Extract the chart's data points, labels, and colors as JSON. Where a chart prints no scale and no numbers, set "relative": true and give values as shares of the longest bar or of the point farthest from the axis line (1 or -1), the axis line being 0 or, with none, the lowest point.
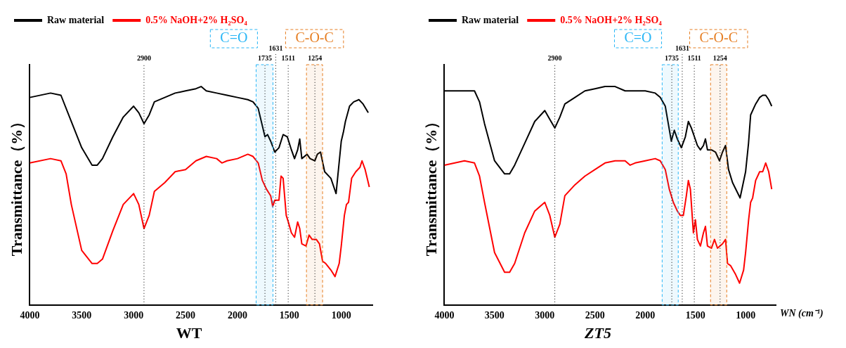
{
  "chart_data": [
    {
      "type": "line",
      "title": "WT",
      "ylabel": "Transmittance（%）",
      "relative": true,
      "legend": "top left",
      "marker": "none",
      "line_style": "solid",
      "xlim": [
        4000,
        700
      ],
      "xticks": [
        4000,
        3500,
        3000,
        2500,
        2000,
        1500,
        1000
      ],
      "ref_lines": [
        {
          "axis": "x",
          "value": 2900,
          "label": "2900",
          "line_style": "dotted"
        },
        {
          "axis": "x",
          "value": 1735,
          "label": "1735",
          "line_style": "dotted"
        },
        {
          "axis": "x",
          "value": 1631,
          "label": "1631",
          "line_style": "dotted"
        },
        {
          "axis": "x",
          "value": 1511,
          "label": "1511",
          "line_style": "dotted"
        },
        {
          "axis": "x",
          "value": 1254,
          "label": "1254",
          "line_style": "dotted"
        }
      ],
      "bands": [
        {
          "axis": "x",
          "from": 1820,
          "to": 1658,
          "label": "C=O",
          "color": "#29b6f6"
        },
        {
          "axis": "x",
          "from": 1335,
          "to": 1180,
          "label": "C-O-C",
          "color": "#e67e22"
        }
      ],
      "series": [
        {
          "name": "Raw material",
          "color": "#000000",
          "x": [
            4000,
            3800,
            3700,
            3600,
            3500,
            3400,
            3350,
            3300,
            3200,
            3100,
            3000,
            2950,
            2900,
            2850,
            2800,
            2700,
            2600,
            2500,
            2400,
            2350,
            2300,
            2200,
            2100,
            2000,
            1900,
            1850,
            1800,
            1760,
            1735,
            1710,
            1680,
            1640,
            1600,
            1560,
            1520,
            1480,
            1450,
            1420,
            1400,
            1380,
            1330,
            1300,
            1254,
            1230,
            1200,
            1160,
            1100,
            1050,
            1000,
            980,
            960,
            920,
            880,
            830,
            790,
            740
          ],
          "values": [
            0.95,
            0.97,
            0.96,
            0.84,
            0.72,
            0.64,
            0.64,
            0.67,
            0.77,
            0.86,
            0.91,
            0.88,
            0.83,
            0.87,
            0.93,
            0.95,
            0.97,
            0.98,
            0.99,
            1.0,
            0.98,
            0.97,
            0.96,
            0.95,
            0.94,
            0.93,
            0.9,
            0.82,
            0.77,
            0.78,
            0.75,
            0.7,
            0.72,
            0.78,
            0.77,
            0.71,
            0.67,
            0.71,
            0.76,
            0.67,
            0.69,
            0.67,
            0.66,
            0.69,
            0.7,
            0.61,
            0.58,
            0.51,
            0.75,
            0.79,
            0.84,
            0.91,
            0.93,
            0.94,
            0.92,
            0.88
          ]
        },
        {
          "name": "0.5% NaOH+2% H₂SO₄",
          "color": "#ff0000",
          "x": [
            4000,
            3800,
            3700,
            3650,
            3600,
            3500,
            3400,
            3350,
            3300,
            3200,
            3100,
            3000,
            2950,
            2900,
            2850,
            2800,
            2700,
            2600,
            2500,
            2400,
            2300,
            2200,
            2150,
            2100,
            2000,
            1900,
            1850,
            1800,
            1760,
            1720,
            1680,
            1660,
            1640,
            1600,
            1580,
            1560,
            1530,
            1510,
            1480,
            1450,
            1420,
            1400,
            1380,
            1340,
            1310,
            1280,
            1240,
            1210,
            1180,
            1150,
            1100,
            1060,
            1020,
            1000,
            970,
            950,
            930,
            900,
            860,
            820,
            800,
            770,
            730
          ],
          "values": [
            0.65,
            0.67,
            0.66,
            0.6,
            0.46,
            0.25,
            0.19,
            0.19,
            0.21,
            0.34,
            0.46,
            0.51,
            0.46,
            0.35,
            0.41,
            0.52,
            0.56,
            0.61,
            0.62,
            0.66,
            0.68,
            0.67,
            0.65,
            0.66,
            0.67,
            0.69,
            0.68,
            0.65,
            0.57,
            0.53,
            0.5,
            0.45,
            0.48,
            0.48,
            0.59,
            0.58,
            0.41,
            0.38,
            0.33,
            0.31,
            0.38,
            0.35,
            0.28,
            0.27,
            0.32,
            0.3,
            0.3,
            0.28,
            0.2,
            0.19,
            0.16,
            0.13,
            0.19,
            0.27,
            0.41,
            0.46,
            0.47,
            0.58,
            0.61,
            0.63,
            0.66,
            0.62,
            0.54
          ]
        }
      ]
    },
    {
      "type": "line",
      "title": "ZT5",
      "xlabel": "WN (cm⁻¹)",
      "ylabel": "Transmittance（%）",
      "relative": true,
      "legend": "top left",
      "marker": "none",
      "line_style": "solid",
      "xlim": [
        4000,
        700
      ],
      "xticks": [
        4000,
        3500,
        3000,
        2500,
        2000,
        1500,
        1000
      ],
      "ref_lines": [
        {
          "axis": "x",
          "value": 2900,
          "label": "2900",
          "line_style": "dotted"
        },
        {
          "axis": "x",
          "value": 1735,
          "label": "1735",
          "line_style": "dotted"
        },
        {
          "axis": "x",
          "value": 1631,
          "label": "1631",
          "line_style": "dotted"
        },
        {
          "axis": "x",
          "value": 1511,
          "label": "1511",
          "line_style": "dotted"
        },
        {
          "axis": "x",
          "value": 1254,
          "label": "1254",
          "line_style": "dotted"
        }
      ],
      "bands": [
        {
          "axis": "x",
          "from": 1831,
          "to": 1671,
          "label": "C=O",
          "color": "#29b6f6"
        },
        {
          "axis": "x",
          "from": 1349,
          "to": 1188,
          "label": "C-O-C",
          "color": "#e67e22"
        }
      ],
      "series": [
        {
          "name": "Raw material",
          "color": "#000000",
          "x": [
            4000,
            3800,
            3700,
            3650,
            3600,
            3500,
            3400,
            3350,
            3300,
            3200,
            3100,
            3000,
            2950,
            2900,
            2850,
            2800,
            2700,
            2600,
            2500,
            2400,
            2300,
            2200,
            2100,
            2000,
            1900,
            1850,
            1800,
            1770,
            1740,
            1710,
            1680,
            1640,
            1600,
            1570,
            1540,
            1510,
            1480,
            1450,
            1420,
            1400,
            1380,
            1340,
            1300,
            1260,
            1230,
            1200,
            1170,
            1130,
            1055,
            1000,
            971,
            950,
            900,
            860,
            830,
            800,
            770,
            740
          ],
          "values": [
            0.98,
            0.98,
            0.98,
            0.93,
            0.83,
            0.66,
            0.6,
            0.6,
            0.64,
            0.74,
            0.84,
            0.89,
            0.85,
            0.81,
            0.86,
            0.92,
            0.95,
            0.98,
            0.99,
            1.0,
            1.0,
            0.98,
            0.98,
            0.98,
            0.97,
            0.95,
            0.91,
            0.83,
            0.75,
            0.8,
            0.76,
            0.72,
            0.77,
            0.84,
            0.81,
            0.77,
            0.73,
            0.71,
            0.73,
            0.76,
            0.71,
            0.71,
            0.7,
            0.66,
            0.7,
            0.73,
            0.62,
            0.56,
            0.49,
            0.61,
            0.74,
            0.87,
            0.92,
            0.95,
            0.96,
            0.96,
            0.94,
            0.91
          ]
        },
        {
          "name": "0.5% NaOH+2% H₂SO₄",
          "color": "#ff0000",
          "x": [
            4000,
            3800,
            3700,
            3650,
            3600,
            3500,
            3400,
            3350,
            3300,
            3200,
            3100,
            3000,
            2950,
            2900,
            2850,
            2800,
            2700,
            2600,
            2500,
            2400,
            2300,
            2200,
            2150,
            2100,
            2000,
            1900,
            1850,
            1800,
            1760,
            1720,
            1680,
            1650,
            1620,
            1590,
            1570,
            1550,
            1520,
            1500,
            1480,
            1450,
            1420,
            1400,
            1380,
            1340,
            1310,
            1280,
            1230,
            1200,
            1180,
            1150,
            1100,
            1060,
            1020,
            1000,
            970,
            950,
            930,
            900,
            860,
            830,
            800,
            770,
            740
          ],
          "values": [
            0.64,
            0.66,
            0.65,
            0.59,
            0.47,
            0.24,
            0.15,
            0.15,
            0.19,
            0.33,
            0.43,
            0.47,
            0.41,
            0.31,
            0.37,
            0.5,
            0.55,
            0.59,
            0.62,
            0.65,
            0.66,
            0.66,
            0.64,
            0.65,
            0.66,
            0.67,
            0.66,
            0.62,
            0.53,
            0.47,
            0.43,
            0.41,
            0.41,
            0.5,
            0.57,
            0.53,
            0.33,
            0.39,
            0.3,
            0.27,
            0.33,
            0.36,
            0.27,
            0.26,
            0.3,
            0.26,
            0.28,
            0.3,
            0.19,
            0.18,
            0.14,
            0.1,
            0.16,
            0.24,
            0.39,
            0.47,
            0.49,
            0.57,
            0.61,
            0.61,
            0.65,
            0.61,
            0.53
          ]
        }
      ]
    }
  ]
}
